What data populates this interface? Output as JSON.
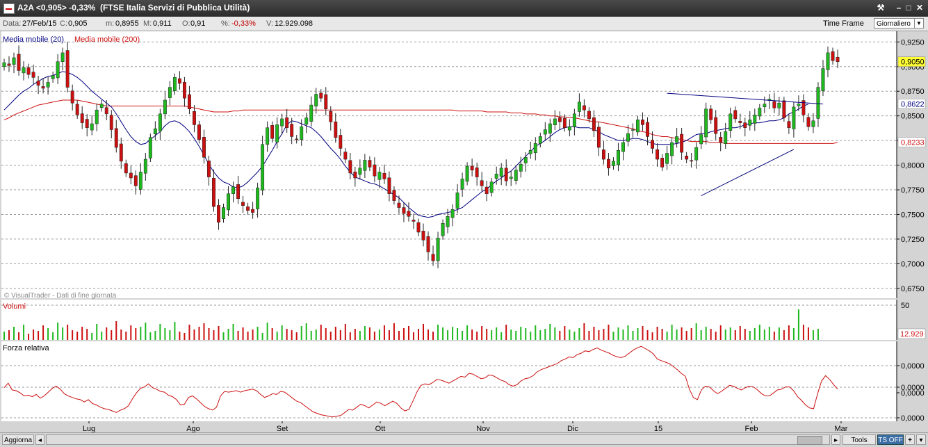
{
  "window": {
    "title": "A2A <0,905> -0,33%  (FTSE Italia Servizi di Pubblica Utilità)"
  },
  "infobar": {
    "date_label": "Data:",
    "date_value": "27/Feb/15",
    "close_label": "C:",
    "close_value": "0,905",
    "min_label": "m:",
    "min_value": "0,8955",
    "max_label": "M:",
    "max_value": "0,911",
    "open_label": "O:",
    "open_value": "0,91",
    "pct_label": "%:",
    "pct_value": "-0,33%",
    "vol_label": "V:",
    "vol_value": "12.929.098",
    "timeframe_label": "Time Frame",
    "timeframe_value": "Giornaliero"
  },
  "legend": {
    "ma20": "Media mobile (20)",
    "ma200": "Media mobile (200)",
    "watermark": "© VisualTrader - Dati di fine giornata",
    "volumes": "Volumi",
    "rs": "Forza relativa"
  },
  "bottombar": {
    "refresh": "Aggiorna",
    "tools": "Tools",
    "tsoff": "TS OFF",
    "plus": "+"
  },
  "colors": {
    "up": "#1fb81f",
    "down": "#cc1010",
    "ma20": "#000080",
    "ma200": "#cc1010",
    "trend": "#000080",
    "rs": "#cc1010",
    "highlight": "#ffff33",
    "bg": "#ffffff"
  },
  "chart_data": [
    {
      "type": "candlestick",
      "title": "",
      "y_ticks": [
        "0,9250",
        "0,9000",
        "0,8750",
        "0,8500",
        "0,8250",
        "0,8000",
        "0,7750",
        "0,7500",
        "0,7250",
        "0,7000",
        "0,6750"
      ],
      "ylim": [
        0.665,
        0.933
      ],
      "x_ticks": [
        "Lug",
        "Ago",
        "Set",
        "Ott",
        "Nov",
        "Dic",
        "15",
        "Feb",
        "Mar"
      ],
      "last_price_label": "0,9050",
      "last_price": 0.905,
      "ma20_label": "0,8622",
      "ma20_last": 0.8622,
      "ma200_label": "0,8233",
      "ma200_last": 0.8233,
      "grid": true,
      "close": [
        0.904,
        0.901,
        0.909,
        0.896,
        0.899,
        0.892,
        0.889,
        0.881,
        0.878,
        0.884,
        0.891,
        0.905,
        0.914,
        0.879,
        0.863,
        0.851,
        0.843,
        0.838,
        0.842,
        0.856,
        0.862,
        0.852,
        0.836,
        0.818,
        0.804,
        0.792,
        0.787,
        0.779,
        0.793,
        0.806,
        0.828,
        0.837,
        0.852,
        0.866,
        0.879,
        0.889,
        0.883,
        0.868,
        0.857,
        0.841,
        0.826,
        0.808,
        0.788,
        0.758,
        0.742,
        0.757,
        0.771,
        0.778,
        0.766,
        0.759,
        0.754,
        0.752,
        0.777,
        0.821,
        0.838,
        0.827,
        0.841,
        0.847,
        0.838,
        0.829,
        0.826,
        0.839,
        0.848,
        0.861,
        0.872,
        0.868,
        0.857,
        0.844,
        0.828,
        0.817,
        0.806,
        0.792,
        0.787,
        0.797,
        0.805,
        0.798,
        0.789,
        0.793,
        0.786,
        0.771,
        0.764,
        0.757,
        0.751,
        0.748,
        0.743,
        0.732,
        0.724,
        0.712,
        0.703,
        0.726,
        0.741,
        0.748,
        0.755,
        0.772,
        0.786,
        0.799,
        0.795,
        0.788,
        0.779,
        0.771,
        0.783,
        0.791,
        0.797,
        0.784,
        0.788,
        0.795,
        0.801,
        0.808,
        0.815,
        0.822,
        0.829,
        0.836,
        0.842,
        0.847,
        0.844,
        0.838,
        0.839,
        0.852,
        0.864,
        0.856,
        0.847,
        0.835,
        0.818,
        0.806,
        0.797,
        0.804,
        0.815,
        0.823,
        0.832,
        0.836,
        0.846,
        0.841,
        0.829,
        0.817,
        0.806,
        0.798,
        0.812,
        0.823,
        0.829,
        0.813,
        0.806,
        0.804,
        0.818,
        0.831,
        0.857,
        0.846,
        0.832,
        0.823,
        0.834,
        0.852,
        0.847,
        0.843,
        0.838,
        0.846,
        0.851,
        0.858,
        0.862,
        0.867,
        0.858,
        0.863,
        0.848,
        0.838,
        0.859,
        0.862,
        0.851,
        0.839,
        0.845,
        0.879,
        0.898,
        0.914,
        0.906,
        0.905
      ],
      "ma20": [
        0.856,
        0.861,
        0.866,
        0.871,
        0.875,
        0.878,
        0.882,
        0.885,
        0.888,
        0.89,
        0.891,
        0.893,
        0.895,
        0.894,
        0.892,
        0.889,
        0.885,
        0.88,
        0.875,
        0.871,
        0.867,
        0.863,
        0.859,
        0.852,
        0.844,
        0.836,
        0.829,
        0.824,
        0.821,
        0.822,
        0.826,
        0.83,
        0.834,
        0.84,
        0.844,
        0.845,
        0.843,
        0.839,
        0.834,
        0.827,
        0.819,
        0.81,
        0.801,
        0.793,
        0.787,
        0.783,
        0.781,
        0.778,
        0.777,
        0.779,
        0.783,
        0.788,
        0.793,
        0.799,
        0.807,
        0.815,
        0.824,
        0.832,
        0.841,
        0.845,
        0.844,
        0.842,
        0.84,
        0.838,
        0.834,
        0.829,
        0.823,
        0.817,
        0.812,
        0.806,
        0.799,
        0.793,
        0.788,
        0.786,
        0.784,
        0.782,
        0.781,
        0.779,
        0.776,
        0.773,
        0.77,
        0.767,
        0.762,
        0.757,
        0.753,
        0.749,
        0.748,
        0.747,
        0.748,
        0.75,
        0.751,
        0.752,
        0.753,
        0.755,
        0.757,
        0.761,
        0.765,
        0.769,
        0.773,
        0.776,
        0.78,
        0.784,
        0.787,
        0.791,
        0.794,
        0.799,
        0.804,
        0.809,
        0.814,
        0.819,
        0.822,
        0.825,
        0.829,
        0.833,
        0.836,
        0.838,
        0.839,
        0.839,
        0.838,
        0.838,
        0.838,
        0.836,
        0.834,
        0.831,
        0.829,
        0.827,
        0.825,
        0.825,
        0.826,
        0.827,
        0.827,
        0.826,
        0.824,
        0.822,
        0.821,
        0.821,
        0.821,
        0.821,
        0.822,
        0.823,
        0.825,
        0.828,
        0.831,
        0.832,
        0.832,
        0.834,
        0.835,
        0.836,
        0.837,
        0.838,
        0.838,
        0.839,
        0.841,
        0.842,
        0.843,
        0.843,
        0.844,
        0.845,
        0.845,
        0.846,
        0.848,
        0.852,
        0.854,
        0.857,
        0.86,
        0.862
      ],
      "ma200": [
        0.846,
        0.848,
        0.851,
        0.853,
        0.855,
        0.857,
        0.859,
        0.861,
        0.862,
        0.863,
        0.864,
        0.865,
        0.866,
        0.866,
        0.866,
        0.866,
        0.865,
        0.864,
        0.863,
        0.862,
        0.861,
        0.86,
        0.86,
        0.86,
        0.86,
        0.86,
        0.86,
        0.86,
        0.86,
        0.86,
        0.86,
        0.86,
        0.86,
        0.86,
        0.86,
        0.86,
        0.86,
        0.86,
        0.859,
        0.858,
        0.857,
        0.856,
        0.855,
        0.854,
        0.854,
        0.854,
        0.854,
        0.855,
        0.855,
        0.856,
        0.856,
        0.856,
        0.856,
        0.856,
        0.856,
        0.856,
        0.856,
        0.856,
        0.856,
        0.856,
        0.856,
        0.856,
        0.856,
        0.856,
        0.856,
        0.856,
        0.856,
        0.856,
        0.856,
        0.856,
        0.856,
        0.856,
        0.856,
        0.856,
        0.856,
        0.856,
        0.856,
        0.856,
        0.856,
        0.856,
        0.856,
        0.856,
        0.856,
        0.856,
        0.856,
        0.856,
        0.856,
        0.856,
        0.856,
        0.856,
        0.856,
        0.856,
        0.856,
        0.855,
        0.855,
        0.855,
        0.855,
        0.855,
        0.855,
        0.854,
        0.854,
        0.854,
        0.854,
        0.854,
        0.853,
        0.853,
        0.853,
        0.852,
        0.852,
        0.852,
        0.851,
        0.851,
        0.85,
        0.85,
        0.849,
        0.849,
        0.848,
        0.848,
        0.847,
        0.846,
        0.845,
        0.844,
        0.844,
        0.843,
        0.842,
        0.841,
        0.84,
        0.839,
        0.838,
        0.837,
        0.835,
        0.834,
        0.833,
        0.831,
        0.83,
        0.829,
        0.829,
        0.828,
        0.827,
        0.826,
        0.825,
        0.824,
        0.824,
        0.824,
        0.824,
        0.823,
        0.823,
        0.823,
        0.822,
        0.822,
        0.822,
        0.822,
        0.822,
        0.822,
        0.822,
        0.822,
        0.822,
        0.822,
        0.822,
        0.822,
        0.822,
        0.822,
        0.822,
        0.822,
        0.822,
        0.822,
        0.822,
        0.822,
        0.822,
        0.822,
        0.822,
        0.823
      ],
      "trendlines": [
        {
          "name": "resistance",
          "from": [
            0,
            0.873
          ],
          "to": [
            1,
            0.862
          ]
        },
        {
          "name": "support",
          "from": [
            0,
            0.769
          ],
          "to": [
            1,
            0.816
          ]
        }
      ]
    },
    {
      "type": "bar",
      "title": "Volumi",
      "y_ticks": [
        "50"
      ],
      "last_value_label": "12.929",
      "values": [
        12,
        14,
        19,
        11,
        22,
        9,
        15,
        13,
        21,
        17,
        11,
        25,
        18,
        22,
        14,
        12,
        19,
        16,
        10,
        23,
        12,
        18,
        14,
        27,
        15,
        12,
        21,
        17,
        19,
        25,
        11,
        13,
        23,
        17,
        14,
        26,
        12,
        10,
        22,
        15,
        19,
        24,
        17,
        14,
        20,
        11,
        16,
        23,
        13,
        18,
        12,
        15,
        19,
        10,
        25,
        17,
        12,
        21,
        16,
        14,
        11,
        20,
        24,
        13,
        15,
        22,
        17,
        12,
        19,
        14,
        23,
        11,
        16,
        13,
        20,
        18,
        12,
        15,
        21,
        14,
        24,
        13,
        17,
        20,
        11,
        16,
        23,
        15,
        12,
        22,
        18,
        14,
        19,
        17,
        13,
        21,
        15,
        12,
        20,
        16,
        14,
        18,
        11,
        22,
        15,
        13,
        19,
        17,
        12,
        21,
        14,
        16,
        23,
        18,
        13,
        20,
        15,
        12,
        17,
        24,
        13,
        19,
        14,
        16,
        22,
        12,
        18,
        15,
        21,
        13,
        17,
        20,
        14,
        11,
        19,
        16,
        12,
        22,
        15,
        18,
        13,
        17,
        24,
        14,
        19,
        16,
        12,
        21,
        15,
        18,
        14,
        20,
        16,
        13,
        17,
        22,
        15,
        19,
        12,
        18,
        14,
        21,
        17,
        44,
        22,
        18,
        14,
        16
      ]
    },
    {
      "type": "line",
      "title": "Forza relativa",
      "y_ticks": [
        "0,0000",
        "0,0000",
        "0,0000",
        "0,0000"
      ],
      "values": [
        0.42,
        0.48,
        0.39,
        0.38,
        0.35,
        0.31,
        0.32,
        0.3,
        0.33,
        0.28,
        0.31,
        0.36,
        0.41,
        0.44,
        0.4,
        0.34,
        0.31,
        0.29,
        0.27,
        0.26,
        0.23,
        0.26,
        0.21,
        0.19,
        0.16,
        0.14,
        0.13,
        0.11,
        0.09,
        0.12,
        0.14,
        0.18,
        0.27,
        0.35,
        0.41,
        0.43,
        0.47,
        0.42,
        0.4,
        0.37,
        0.36,
        0.32,
        0.3,
        0.26,
        0.19,
        0.2,
        0.29,
        0.31,
        0.27,
        0.22,
        0.17,
        0.14,
        0.12,
        0.16,
        0.31,
        0.37,
        0.36,
        0.37,
        0.38,
        0.36,
        0.38,
        0.39,
        0.4,
        0.38,
        0.33,
        0.29,
        0.31,
        0.34,
        0.33,
        0.37,
        0.36,
        0.32,
        0.28,
        0.24,
        0.22,
        0.18,
        0.14,
        0.1,
        0.08,
        0.06,
        0.05,
        0.04,
        0.03,
        0.04,
        0.05,
        0.09,
        0.13,
        0.12,
        0.16,
        0.2,
        0.18,
        0.15,
        0.19,
        0.23,
        0.21,
        0.18,
        0.21,
        0.24,
        0.21,
        0.15,
        0.11,
        0.13,
        0.24,
        0.36,
        0.45,
        0.47,
        0.46,
        0.49,
        0.53,
        0.52,
        0.5,
        0.48,
        0.51,
        0.54,
        0.57,
        0.56,
        0.61,
        0.6,
        0.57,
        0.54,
        0.55,
        0.59,
        0.58,
        0.55,
        0.52,
        0.5,
        0.46,
        0.44,
        0.46,
        0.51,
        0.54,
        0.55,
        0.58,
        0.63,
        0.66,
        0.68,
        0.7,
        0.72,
        0.74,
        0.78,
        0.8,
        0.83,
        0.82,
        0.86,
        0.88,
        0.91,
        0.9,
        0.93,
        0.95,
        0.92,
        0.9,
        0.88,
        0.85,
        0.83,
        0.82,
        0.84,
        0.88,
        0.92,
        0.95,
        0.97,
        0.94,
        0.91,
        0.87,
        0.8,
        0.78,
        0.76,
        0.74,
        0.7,
        0.66,
        0.61,
        0.57,
        0.4,
        0.29,
        0.26,
        0.39,
        0.44,
        0.43,
        0.38,
        0.34,
        0.37,
        0.41,
        0.45,
        0.44,
        0.41,
        0.39,
        0.42,
        0.44,
        0.43,
        0.39,
        0.34,
        0.31,
        0.31,
        0.35,
        0.39,
        0.4,
        0.43,
        0.43,
        0.38,
        0.3,
        0.25,
        0.19,
        0.15,
        0.14,
        0.34,
        0.51,
        0.58,
        0.53,
        0.46,
        0.4
      ]
    }
  ]
}
